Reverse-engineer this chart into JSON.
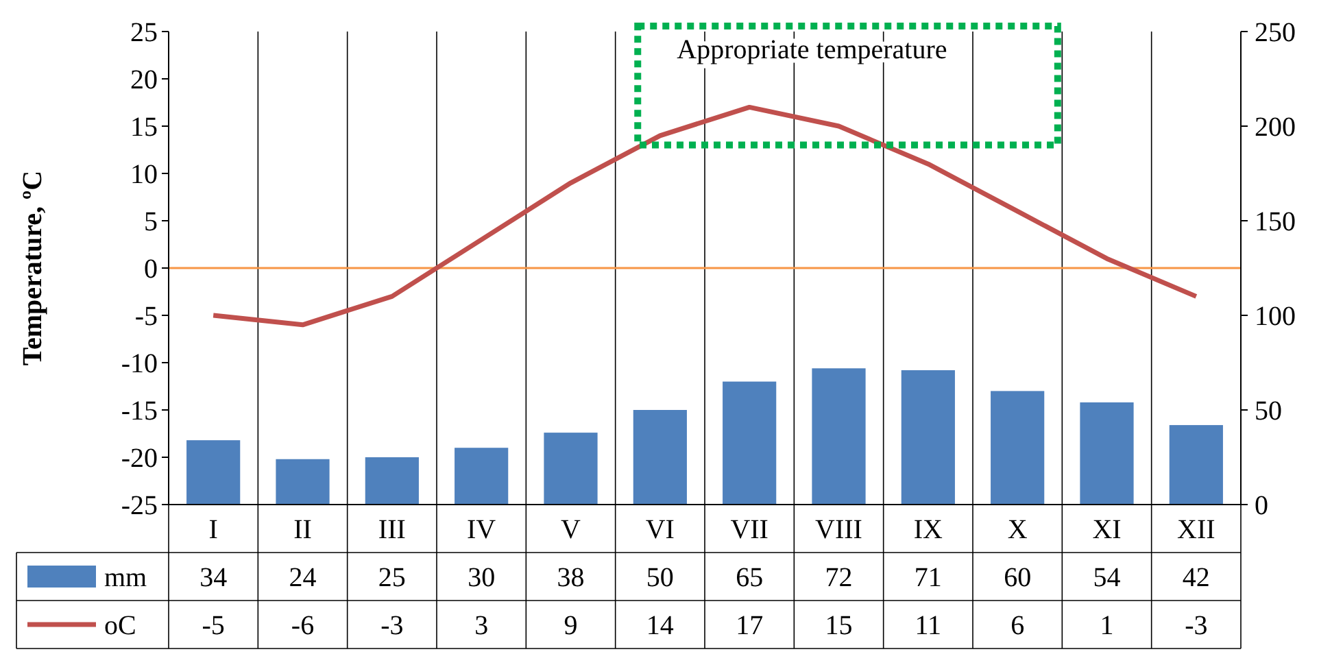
{
  "chart_data": {
    "type": "bar",
    "ylabel": "Temperature, ºC",
    "categories": [
      "I",
      "II",
      "III",
      "IV",
      "V",
      "VI",
      "VII",
      "VIII",
      "IX",
      "X",
      "XI",
      "XII"
    ],
    "series": [
      {
        "name": "mm",
        "axis": "y2",
        "color": "#4f81bd",
        "values": [
          34,
          24,
          25,
          30,
          38,
          50,
          65,
          72,
          71,
          60,
          54,
          42
        ]
      },
      {
        "name": "oC",
        "type": "line",
        "axis": "y",
        "color": "#c0504d",
        "values": [
          -5,
          -6,
          -3,
          3,
          9,
          14,
          17,
          15,
          11,
          6,
          1,
          -3
        ]
      }
    ],
    "ylim": [
      -25,
      25
    ],
    "yticks": [
      -25,
      -20,
      -15,
      -10,
      -5,
      0,
      5,
      10,
      15,
      20,
      25
    ],
    "y2lim": [
      0,
      250
    ],
    "y2ticks": [
      0,
      50,
      100,
      150,
      200,
      250
    ],
    "ref_lines": [
      {
        "axis": "y",
        "value": 0,
        "color": "#f79646"
      }
    ],
    "annotations": [
      "Appropriate temperature"
    ],
    "grid": "x",
    "legend": "bottom",
    "data_labels": true,
    "marker": "none",
    "line_style": "solid"
  }
}
